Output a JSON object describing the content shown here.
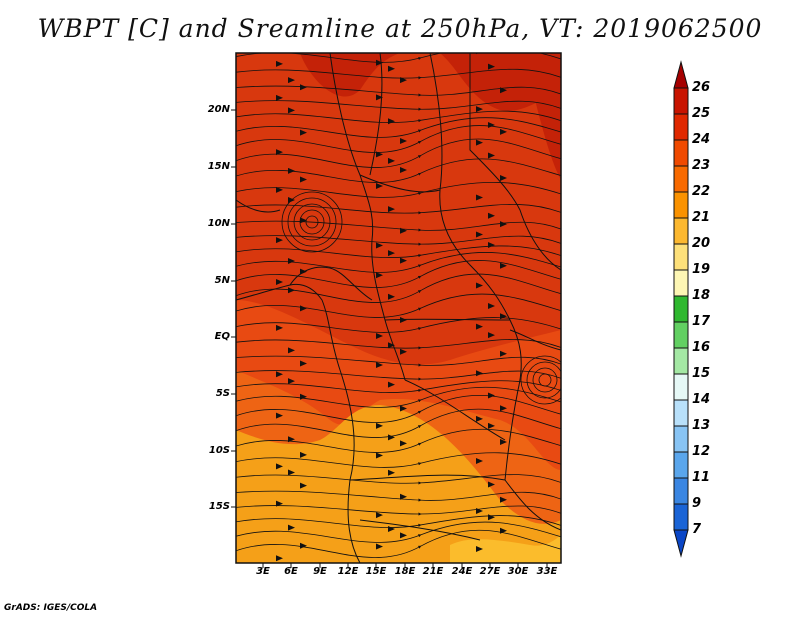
{
  "title": "WBPT [C] and Sreamline at 250hPa, VT: 2019062500",
  "credit": "GrADS: IGES/COLA",
  "lat_labels": [
    "20N",
    "15N",
    "10N",
    "5N",
    "EQ",
    "5S",
    "10S",
    "15S"
  ],
  "lon_labels": [
    "3E",
    "6E",
    "9E",
    "12E",
    "15E",
    "18E",
    "21E",
    "24E",
    "27E",
    "30E",
    "33E"
  ],
  "colorbar": {
    "labels": [
      "26",
      "25",
      "24",
      "23",
      "22",
      "21",
      "20",
      "19",
      "18",
      "17",
      "16",
      "15",
      "14",
      "13",
      "12",
      "11",
      "9",
      "7"
    ],
    "colors": [
      "#a50000",
      "#c81400",
      "#e02800",
      "#f04a00",
      "#f86a00",
      "#fa9200",
      "#fcb830",
      "#fde07a",
      "#fdf6b4",
      "#2fb82f",
      "#62d062",
      "#a4e8a4",
      "#e6f8f6",
      "#b8e0fa",
      "#88c4f4",
      "#5aa6ec",
      "#3a86e2",
      "#1a64d6",
      "#0a46c6"
    ]
  },
  "colors": {
    "bg": "#e84a12",
    "warm": "#d8380e",
    "hot": "#c42208",
    "mild": "#ee6414",
    "cool": "#f5a018",
    "coolest": "#fbbc2c",
    "line": "#111111"
  }
}
